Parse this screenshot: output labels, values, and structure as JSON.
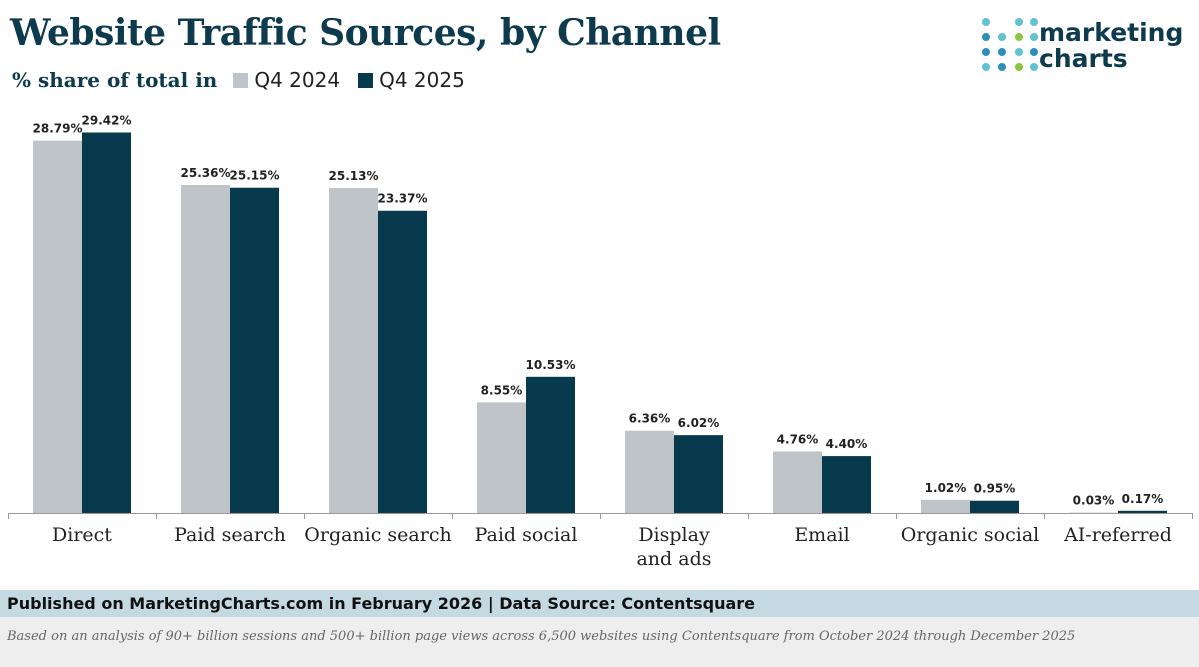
{
  "header": {
    "title": "Website Traffic Sources, by Channel",
    "subtitle": "% share of total in"
  },
  "logo": {
    "line1": "marketing",
    "line2": "charts"
  },
  "colors": {
    "q4_2024": "#bfc4c9",
    "q4_2025": "#073a4d",
    "title": "#0e3a4d",
    "footer_bg": "#c5d9e3"
  },
  "chart_data": {
    "type": "bar",
    "title": "Website Traffic Sources, by Channel",
    "ylabel": "% share of total",
    "xlabel": "",
    "ylim": [
      0,
      30
    ],
    "grid": false,
    "legend": "top-left",
    "categories": [
      "Direct",
      "Paid search",
      "Organic search",
      "Paid social",
      "Display and ads",
      "Email",
      "Organic social",
      "AI-referred"
    ],
    "category_lines": [
      [
        "Direct"
      ],
      [
        "Paid search"
      ],
      [
        "Organic search"
      ],
      [
        "Paid social"
      ],
      [
        "Display",
        "and ads"
      ],
      [
        "Email"
      ],
      [
        "Organic social"
      ],
      [
        "AI-referred"
      ]
    ],
    "series": [
      {
        "name": "Q4 2024",
        "color": "#bfc4c9",
        "values": [
          28.79,
          25.36,
          25.13,
          8.55,
          6.36,
          4.76,
          1.02,
          0.03
        ],
        "labels": [
          "28.79%",
          "25.36%",
          "25.13%",
          "8.55%",
          "6.36%",
          "4.76%",
          "1.02%",
          "0.03%"
        ]
      },
      {
        "name": "Q4 2025",
        "color": "#073a4d",
        "values": [
          29.42,
          25.15,
          23.37,
          10.53,
          6.02,
          4.4,
          0.95,
          0.17
        ],
        "labels": [
          "29.42%",
          "25.15%",
          "23.37%",
          "10.53%",
          "6.02%",
          "4.40%",
          "0.95%",
          "0.17%"
        ]
      }
    ]
  },
  "footer": {
    "published": "Published on MarketingCharts.com in February 2026 | Data Source: Contentsquare",
    "note": "Based on an analysis of 90+ billion sessions and 500+ billion page views across 6,500 websites using Contentsquare from October 2024 through December 2025"
  }
}
